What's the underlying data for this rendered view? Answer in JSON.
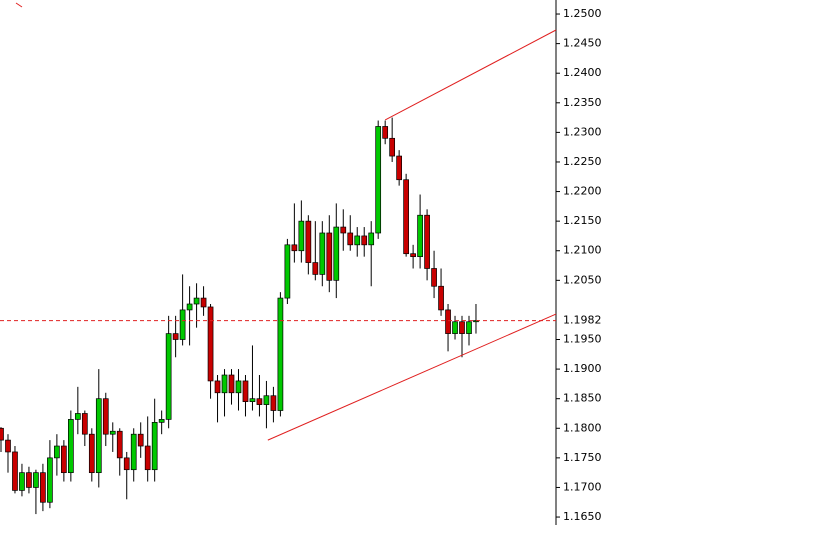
{
  "chart_data": {
    "type": "candlestick",
    "series": [
      {
        "up_color": "#00c800",
        "down_color": "#c80000",
        "outline_color": "#000000",
        "open": [
          1.18,
          1.178,
          1.176,
          1.1695,
          1.1725,
          1.17,
          1.1725,
          1.1675,
          1.175,
          1.177,
          1.1725,
          1.1815,
          1.1825,
          1.179,
          1.1725,
          1.185,
          1.179,
          1.1795,
          1.175,
          1.173,
          1.179,
          1.177,
          1.173,
          1.181,
          1.1815,
          1.196,
          1.195,
          1.2,
          1.201,
          1.202,
          1.2005,
          1.188,
          1.186,
          1.189,
          1.186,
          1.188,
          1.1845,
          1.185,
          1.184,
          1.1855,
          1.183,
          1.202,
          1.211,
          1.21,
          1.215,
          1.208,
          1.206,
          1.213,
          1.205,
          1.214,
          1.213,
          1.211,
          1.2125,
          1.211,
          1.213,
          1.231,
          1.229,
          1.226,
          1.222,
          1.2095,
          1.209,
          1.216,
          1.207,
          1.204,
          1.2,
          1.196,
          1.198,
          1.196,
          1.198
        ],
        "high": [
          1.1802,
          1.179,
          1.177,
          1.174,
          1.1735,
          1.173,
          1.174,
          1.178,
          1.179,
          1.178,
          1.183,
          1.187,
          1.183,
          1.18,
          1.19,
          1.186,
          1.181,
          1.18,
          1.176,
          1.18,
          1.181,
          1.182,
          1.185,
          1.183,
          1.199,
          1.199,
          1.206,
          1.204,
          1.2045,
          1.204,
          1.201,
          1.189,
          1.19,
          1.19,
          1.19,
          1.189,
          1.194,
          1.189,
          1.188,
          1.187,
          1.203,
          1.212,
          1.218,
          1.2185,
          1.216,
          1.215,
          1.215,
          1.216,
          1.218,
          1.217,
          1.216,
          1.214,
          1.214,
          1.215,
          1.232,
          1.232,
          1.2325,
          1.227,
          1.223,
          1.211,
          1.2195,
          1.217,
          1.21,
          1.207,
          1.201,
          1.199,
          1.199,
          1.199,
          1.201
        ],
        "low": [
          1.176,
          1.1725,
          1.169,
          1.1685,
          1.169,
          1.1655,
          1.166,
          1.1665,
          1.172,
          1.171,
          1.171,
          1.179,
          1.177,
          1.171,
          1.17,
          1.177,
          1.176,
          1.172,
          1.168,
          1.171,
          1.175,
          1.171,
          1.171,
          1.179,
          1.18,
          1.192,
          1.194,
          1.194,
          1.197,
          1.199,
          1.185,
          1.181,
          1.182,
          1.184,
          1.183,
          1.182,
          1.183,
          1.182,
          1.18,
          1.181,
          1.182,
          1.201,
          1.208,
          1.208,
          1.206,
          1.205,
          1.204,
          1.203,
          1.202,
          1.21,
          1.21,
          1.209,
          1.209,
          1.204,
          1.212,
          1.228,
          1.225,
          1.221,
          1.209,
          1.207,
          1.207,
          1.205,
          1.202,
          1.199,
          1.193,
          1.195,
          1.192,
          1.194,
          1.196
        ],
        "close": [
          1.178,
          1.176,
          1.1695,
          1.1725,
          1.17,
          1.1725,
          1.1675,
          1.175,
          1.177,
          1.1725,
          1.1815,
          1.1825,
          1.179,
          1.1725,
          1.185,
          1.179,
          1.1795,
          1.175,
          1.173,
          1.179,
          1.177,
          1.173,
          1.181,
          1.1815,
          1.196,
          1.195,
          1.2,
          1.201,
          1.202,
          1.2005,
          1.188,
          1.186,
          1.189,
          1.186,
          1.188,
          1.1845,
          1.185,
          1.184,
          1.1855,
          1.183,
          1.202,
          1.211,
          1.21,
          1.215,
          1.208,
          1.206,
          1.213,
          1.205,
          1.214,
          1.213,
          1.211,
          1.2125,
          1.211,
          1.213,
          1.231,
          1.229,
          1.226,
          1.222,
          1.2095,
          1.209,
          1.216,
          1.207,
          1.204,
          1.2,
          1.196,
          1.198,
          1.196,
          1.198,
          1.1982
        ]
      }
    ],
    "price_line": 1.1982,
    "price_line_color": "#e02020",
    "trend_lines": [
      {
        "x": [
          55,
          79.5
        ],
        "y": [
          1.2321,
          1.2473
        ],
        "color": "#e02020"
      },
      {
        "x": [
          38.2,
          79.5
        ],
        "y": [
          1.178,
          1.1993
        ],
        "color": "#e02020"
      }
    ],
    "ylim": [
      1.16129,
      1.25237
    ],
    "yticks": [
      {
        "value": 1.165,
        "label": "1.1650"
      },
      {
        "value": 1.17,
        "label": "1.1700"
      },
      {
        "value": 1.175,
        "label": "1.1750"
      },
      {
        "value": 1.18,
        "label": "1.1800"
      },
      {
        "value": 1.185,
        "label": "1.1850"
      },
      {
        "value": 1.19,
        "label": "1.1900"
      },
      {
        "value": 1.195,
        "label": "1.1950"
      },
      {
        "value": 1.205,
        "label": "1.2050"
      },
      {
        "value": 1.21,
        "label": "1.2100"
      },
      {
        "value": 1.215,
        "label": "1.2150"
      },
      {
        "value": 1.22,
        "label": "1.2200"
      },
      {
        "value": 1.225,
        "label": "1.2250"
      },
      {
        "value": 1.23,
        "label": "1.2300"
      },
      {
        "value": 1.235,
        "label": "1.2350"
      },
      {
        "value": 1.24,
        "label": "1.2400"
      },
      {
        "value": 1.245,
        "label": "1.2450"
      },
      {
        "value": 1.25,
        "label": "1.2500"
      }
    ]
  }
}
